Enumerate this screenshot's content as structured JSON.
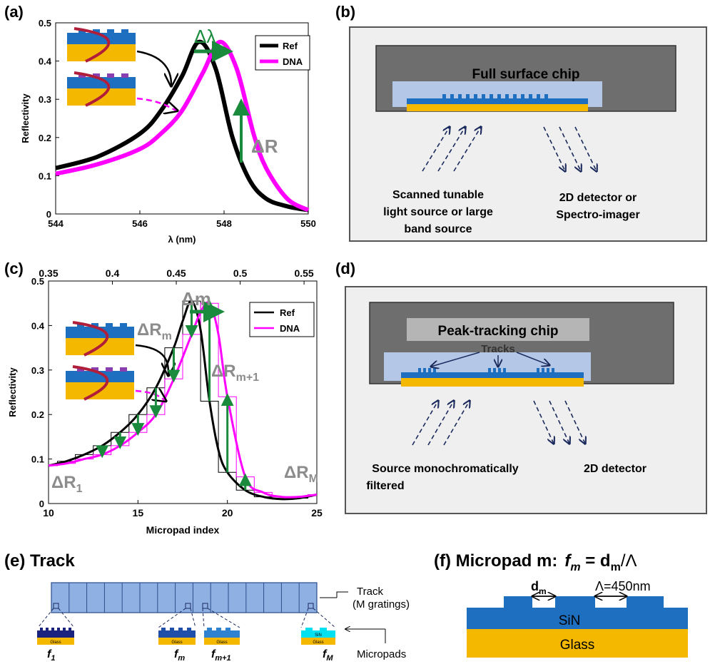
{
  "colors": {
    "ref": "#000000",
    "dna": "#ff00ff",
    "arrow": "#1a8a3c",
    "delta_label": "#8c8c8c",
    "chip_dark": "#6e6e6e",
    "chip_light": "#b5c7e6",
    "sin_blue": "#1f6fc0",
    "glass_yellow": "#f5b800",
    "track_fill": "#8fb0e3",
    "detector_arrow": "#1b2a5c"
  },
  "panel_a": {
    "label": "(a)",
    "ylabel": "Reflectivity",
    "xlabel": "λ (nm)",
    "xticks": [
      "544",
      "546",
      "548",
      "550"
    ],
    "yticks": [
      "0",
      "0.1",
      "0.2",
      "0.3",
      "0.4",
      "0.5"
    ],
    "legend": [
      "Ref",
      "DNA"
    ],
    "delta_lambda": "Δλ",
    "delta_r": "ΔR"
  },
  "panel_b": {
    "label": "(b)",
    "chip_title": "Full surface chip",
    "source_text": [
      "Scanned tunable",
      "light source or large",
      "band source"
    ],
    "detector_text": [
      "2D detector or",
      "Spectro-imager"
    ]
  },
  "panel_c": {
    "label": "(c)",
    "ylabel": "Reflectivity",
    "xlabel": "Micropad index",
    "xticks": [
      "10",
      "15",
      "20",
      "25"
    ],
    "top_ticks": [
      "0.35",
      "0.4",
      "0.45",
      "0.5",
      "0.55"
    ],
    "yticks": [
      "0",
      "0.1",
      "0.2",
      "0.3",
      "0.4",
      "0.5"
    ],
    "legend": [
      "Ref",
      "DNA"
    ],
    "delta_m": "Δm",
    "delta_rm": "ΔR",
    "delta_rm_sub": "m",
    "delta_rm1": "ΔR",
    "delta_rm1_sub": "m+1",
    "delta_r1": "ΔR",
    "delta_r1_sub": "1",
    "delta_rM": "ΔR",
    "delta_rM_sub": "M"
  },
  "panel_d": {
    "label": "(d)",
    "chip_title": "Peak-tracking chip",
    "tracks_label": "Tracks",
    "source_text": [
      "Source monochromatically",
      "filtered"
    ],
    "detector_text": [
      "2D detector"
    ]
  },
  "panel_e": {
    "label": "(e) Track",
    "track_label": [
      "Track",
      "(M gratings)"
    ],
    "micropads_label": "Micropads",
    "pad_labels": [
      {
        "main": "f",
        "sub": "1"
      },
      {
        "main": "f",
        "sub": "m"
      },
      {
        "main": "f",
        "sub": "m+1"
      },
      {
        "main": "f",
        "sub": "M"
      }
    ],
    "pad_text": [
      "Glass",
      "Glass",
      "Glass",
      "SiN",
      "Glass"
    ]
  },
  "panel_f": {
    "title_prefix": "(f) Micropad m:",
    "formula_f": "f",
    "formula_sub": "m",
    "formula_eq": " = d",
    "formula_eq_sub": "m",
    "formula_tail": "/Λ",
    "dm_label": "d",
    "dm_sub": "m",
    "period_label": "Λ=450nm",
    "sin_label": "SiN",
    "glass_label": "Glass"
  },
  "chart_data": [
    {
      "type": "line",
      "title": "",
      "xlabel": "λ (nm)",
      "ylabel": "Reflectivity",
      "xlim": [
        544,
        550
      ],
      "ylim": [
        0,
        0.5
      ],
      "series": [
        {
          "name": "Ref",
          "x": [
            544,
            545,
            546,
            546.5,
            547,
            547.4,
            547.8,
            548.2,
            548.6,
            549,
            549.5,
            550
          ],
          "values": [
            0.12,
            0.15,
            0.21,
            0.27,
            0.36,
            0.45,
            0.38,
            0.2,
            0.09,
            0.04,
            0.02,
            0.01
          ]
        },
        {
          "name": "DNA",
          "x": [
            544,
            545,
            546,
            546.5,
            547,
            547.5,
            547.9,
            548.3,
            548.7,
            549,
            549.5,
            550
          ],
          "values": [
            0.105,
            0.13,
            0.17,
            0.21,
            0.27,
            0.37,
            0.45,
            0.38,
            0.21,
            0.12,
            0.04,
            0.01
          ]
        }
      ]
    },
    {
      "type": "line",
      "title": "",
      "xlabel": "Micropad index",
      "ylabel": "Reflectivity",
      "xlim": [
        10,
        25
      ],
      "ylim": [
        0,
        0.5
      ],
      "top_axis": [
        0.35,
        0.56
      ],
      "series": [
        {
          "name": "Ref",
          "x": [
            10,
            11,
            12,
            13,
            14,
            15,
            16,
            17,
            17.5,
            18,
            18.5,
            19,
            19.5,
            20,
            21,
            22,
            23,
            24,
            25
          ],
          "values": [
            0.085,
            0.095,
            0.11,
            0.13,
            0.16,
            0.2,
            0.26,
            0.35,
            0.41,
            0.455,
            0.39,
            0.23,
            0.12,
            0.07,
            0.03,
            0.015,
            0.01,
            0.012,
            0.02
          ]
        },
        {
          "name": "DNA",
          "x": [
            10,
            11,
            12,
            13,
            14,
            15,
            16,
            17,
            18,
            18.5,
            19,
            19.5,
            20,
            21,
            22,
            23,
            24,
            25
          ],
          "values": [
            0.085,
            0.09,
            0.1,
            0.11,
            0.13,
            0.16,
            0.2,
            0.28,
            0.38,
            0.43,
            0.45,
            0.38,
            0.24,
            0.06,
            0.025,
            0.015,
            0.015,
            0.02
          ]
        }
      ]
    }
  ]
}
